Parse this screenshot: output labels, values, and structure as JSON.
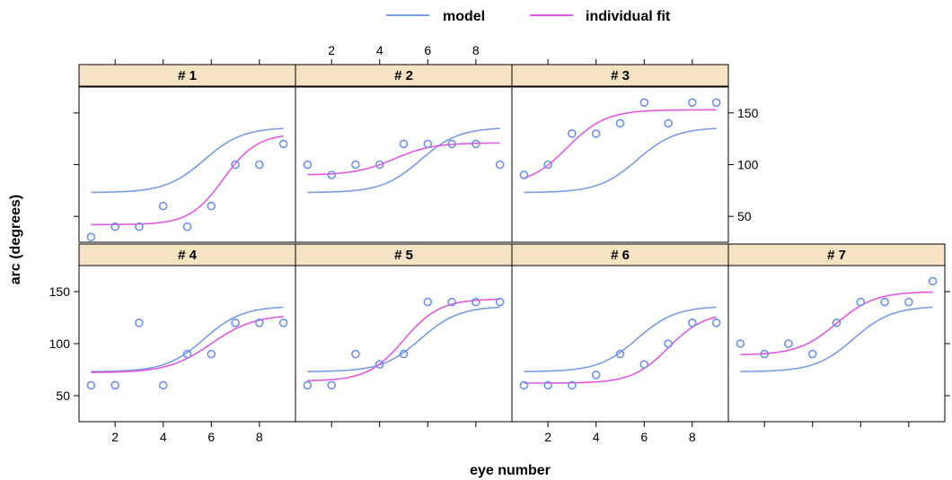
{
  "chart_data": {
    "type": "line",
    "layout": "lattice panels, 2 rows",
    "xlabel": "eye number",
    "ylabel": "arc (degrees)",
    "xlim": [
      0.5,
      9.5
    ],
    "ylim": [
      25,
      175
    ],
    "x_ticks": [
      2,
      4,
      6,
      8
    ],
    "y_ticks": [
      50,
      100,
      150
    ],
    "legend": {
      "position": "top",
      "entries": [
        {
          "name": "model",
          "color": "#7a9ce0"
        },
        {
          "name": "individual fit",
          "color": "#e05ae0"
        }
      ]
    },
    "colors": {
      "model": "#7a9ce0",
      "fit": "#e05ae0",
      "points": "#6f90e8",
      "strip": "#f7e2c4"
    },
    "model_curve": {
      "lower": 73,
      "upper": 136,
      "midpoint": 5.7,
      "scale": 0.8
    },
    "panels": [
      {
        "label": "# 1",
        "points": [
          [
            1,
            30
          ],
          [
            2,
            40
          ],
          [
            3,
            40
          ],
          [
            4,
            60
          ],
          [
            5,
            40
          ],
          [
            6,
            60
          ],
          [
            7,
            100
          ],
          [
            8,
            100
          ],
          [
            9,
            120
          ]
        ],
        "fit": {
          "lower": 42,
          "upper": 130,
          "midpoint": 6.5,
          "scale": 0.7
        }
      },
      {
        "label": "# 2",
        "points": [
          [
            1,
            100
          ],
          [
            2,
            90
          ],
          [
            3,
            100
          ],
          [
            4,
            100
          ],
          [
            5,
            120
          ],
          [
            6,
            120
          ],
          [
            7,
            120
          ],
          [
            8,
            120
          ],
          [
            9,
            100
          ]
        ],
        "fit": {
          "lower": 90,
          "upper": 121,
          "midpoint": 4.6,
          "scale": 0.8
        }
      },
      {
        "label": "# 3",
        "points": [
          [
            1,
            90
          ],
          [
            2,
            100
          ],
          [
            3,
            130
          ],
          [
            4,
            130
          ],
          [
            5,
            140
          ],
          [
            6,
            160
          ],
          [
            7,
            140
          ],
          [
            8,
            160
          ],
          [
            9,
            160
          ]
        ],
        "fit": {
          "lower": 80,
          "upper": 153,
          "midpoint": 2.8,
          "scale": 0.8
        }
      },
      {
        "label": "# 4",
        "points": [
          [
            1,
            60
          ],
          [
            2,
            60
          ],
          [
            3,
            120
          ],
          [
            4,
            60
          ],
          [
            5,
            90
          ],
          [
            6,
            90
          ],
          [
            7,
            120
          ],
          [
            8,
            120
          ],
          [
            9,
            120
          ]
        ],
        "fit": {
          "lower": 72,
          "upper": 128,
          "midpoint": 6.0,
          "scale": 0.9
        }
      },
      {
        "label": "# 5",
        "points": [
          [
            1,
            60
          ],
          [
            2,
            60
          ],
          [
            3,
            90
          ],
          [
            4,
            80
          ],
          [
            5,
            90
          ],
          [
            6,
            140
          ],
          [
            7,
            140
          ],
          [
            8,
            140
          ],
          [
            9,
            140
          ]
        ],
        "fit": {
          "lower": 64,
          "upper": 143,
          "midpoint": 5.0,
          "scale": 0.75
        }
      },
      {
        "label": "# 6",
        "points": [
          [
            1,
            60
          ],
          [
            2,
            60
          ],
          [
            3,
            60
          ],
          [
            4,
            70
          ],
          [
            5,
            90
          ],
          [
            6,
            80
          ],
          [
            7,
            100
          ],
          [
            8,
            120
          ],
          [
            9,
            120
          ]
        ],
        "fit": {
          "lower": 62,
          "upper": 130,
          "midpoint": 7.0,
          "scale": 0.75
        }
      },
      {
        "label": "# 7",
        "points": [
          [
            1,
            100
          ],
          [
            2,
            90
          ],
          [
            3,
            100
          ],
          [
            4,
            90
          ],
          [
            5,
            120
          ],
          [
            6,
            140
          ],
          [
            7,
            140
          ],
          [
            8,
            140
          ],
          [
            9,
            160
          ]
        ],
        "fit": {
          "lower": 89,
          "upper": 150,
          "midpoint": 5.0,
          "scale": 0.8
        }
      }
    ]
  }
}
